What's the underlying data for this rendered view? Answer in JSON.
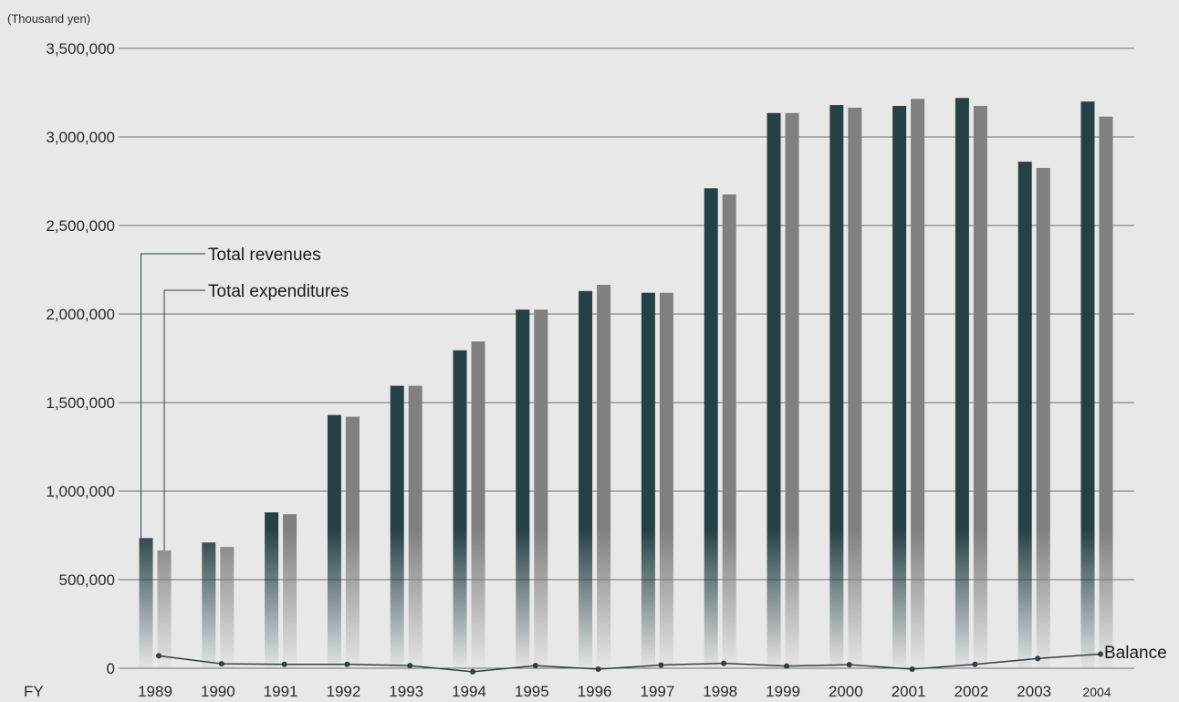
{
  "chart_data": {
    "type": "bar",
    "unit_label": "(Thousand yen)",
    "x_prefix": "FY",
    "categories": [
      "1989",
      "1990",
      "1991",
      "1992",
      "1993",
      "1994",
      "1995",
      "1996",
      "1997",
      "1998",
      "1999",
      "2000",
      "2001",
      "2002",
      "2003",
      "2004"
    ],
    "series": [
      {
        "name": "Total revenues",
        "color": "#264146",
        "values": [
          735000,
          710000,
          880000,
          1430000,
          1595000,
          1795000,
          2025000,
          2130000,
          2120000,
          2710000,
          3135000,
          3180000,
          3175000,
          3220000,
          2860000,
          3200000
        ]
      },
      {
        "name": "Total expenditures",
        "color": "#808080",
        "values": [
          665000,
          685000,
          870000,
          1420000,
          1595000,
          1845000,
          2025000,
          2165000,
          2120000,
          2675000,
          3135000,
          3165000,
          3215000,
          3175000,
          2825000,
          3115000
        ]
      }
    ],
    "line_series": {
      "name": "Balance",
      "color": "#2b4244",
      "values": [
        70000,
        25000,
        22000,
        22000,
        15000,
        -20000,
        15000,
        -5000,
        18000,
        28000,
        12000,
        20000,
        -5000,
        22000,
        55000,
        80000
      ]
    },
    "y_ticks": [
      "0",
      "500,000",
      "1,000,000",
      "1,500,000",
      "2,000,000",
      "2,500,000",
      "3,000,000",
      "3,500,000"
    ],
    "ylim": [
      0,
      3500000
    ],
    "grid": true
  }
}
